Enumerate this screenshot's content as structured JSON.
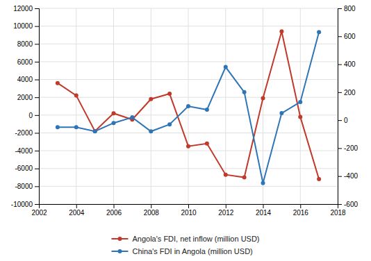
{
  "chart_data": {
    "type": "line",
    "x": [
      2003,
      2004,
      2005,
      2006,
      2007,
      2008,
      2009,
      2010,
      2011,
      2012,
      2013,
      2014,
      2015,
      2016,
      2017
    ],
    "series": [
      {
        "name": "Angola's FDI, net inflow (million USD)",
        "color": "#c0392b",
        "values": [
          3600,
          2200,
          -1800,
          200,
          -500,
          1800,
          2400,
          -3500,
          -3200,
          -6700,
          -7000,
          1900,
          9400,
          -200,
          -7200
        ]
      },
      {
        "name": "China's FDI in Angola (million USD)",
        "color": "#2e75b6",
        "axis": "y2",
        "values": [
          -50,
          -50,
          -80,
          -20,
          20,
          -80,
          -30,
          100,
          75,
          380,
          200,
          -450,
          50,
          130,
          630
        ]
      }
    ],
    "xlim": [
      2002,
      2018
    ],
    "xticks": [
      2002,
      2004,
      2006,
      2008,
      2010,
      2012,
      2014,
      2016,
      2018
    ],
    "ylim": [
      -10000,
      12000
    ],
    "yticks": [
      -10000,
      -8000,
      -6000,
      -4000,
      -2000,
      0,
      2000,
      4000,
      6000,
      8000,
      10000,
      12000
    ],
    "y2lim": [
      -600,
      800
    ],
    "y2ticks": [
      -600,
      -400,
      -200,
      0,
      200,
      400,
      600,
      800
    ],
    "marker": "circle",
    "grid": true,
    "legend": "bottom"
  }
}
